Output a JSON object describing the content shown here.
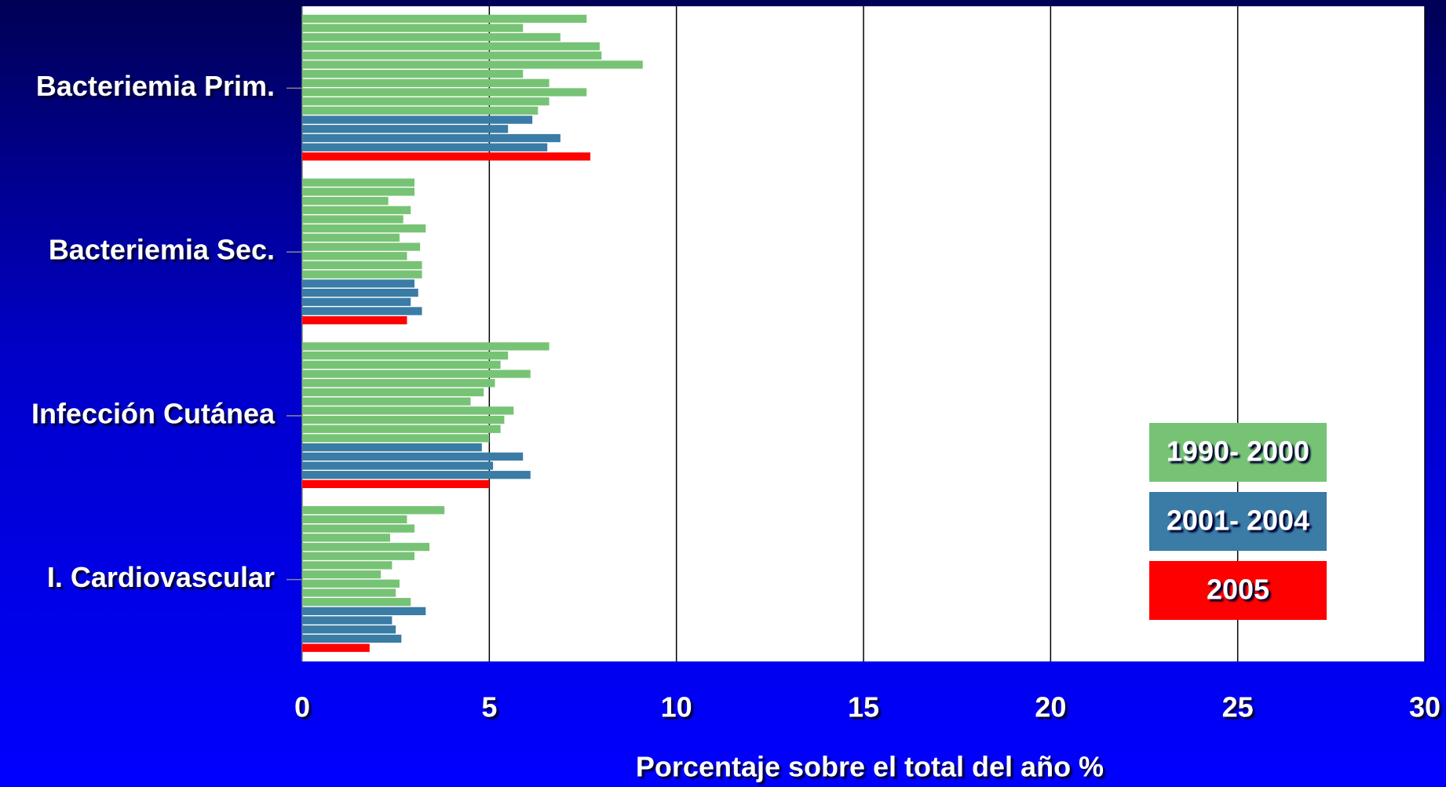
{
  "chart_data": {
    "type": "grouped-hbar",
    "x_label": "Porcentaje sobre el total del año %",
    "categories": [
      "Bacteriemia Prim.",
      "Bacteriemia Sec.",
      "Infección Cutánea",
      "I. Cardiovascular"
    ],
    "series": [
      {
        "name": "1990- 2000",
        "color": "#77c375",
        "values": [
          [
            7.6,
            5.9,
            6.9,
            7.95,
            8.0,
            9.1,
            5.9,
            6.6,
            7.6,
            6.6,
            6.3
          ],
          [
            3.0,
            3.0,
            2.3,
            2.9,
            2.7,
            3.3,
            2.6,
            3.15,
            2.8,
            3.2,
            3.2
          ],
          [
            6.6,
            5.5,
            5.3,
            6.1,
            5.15,
            4.85,
            4.5,
            5.65,
            5.4,
            5.3,
            5.0
          ],
          [
            3.8,
            2.8,
            3.0,
            2.35,
            3.4,
            3.0,
            2.4,
            2.1,
            2.6,
            2.5,
            2.9
          ]
        ]
      },
      {
        "name": "2001- 2004",
        "color": "#3a7ca5",
        "values": [
          [
            6.15,
            5.5,
            6.9,
            6.55
          ],
          [
            3.0,
            3.1,
            2.9,
            3.2
          ],
          [
            4.8,
            5.9,
            5.1,
            6.1
          ],
          [
            3.3,
            2.4,
            2.5,
            2.65
          ]
        ]
      },
      {
        "name": "2005",
        "color": "#ff0000",
        "values": [
          [
            7.7
          ],
          [
            2.8
          ],
          [
            5.0
          ],
          [
            1.8
          ]
        ]
      }
    ],
    "xlim": [
      0,
      30
    ],
    "xticks": [
      0,
      5,
      10,
      15,
      20,
      25,
      30
    ],
    "grid": true,
    "legend": "right"
  }
}
